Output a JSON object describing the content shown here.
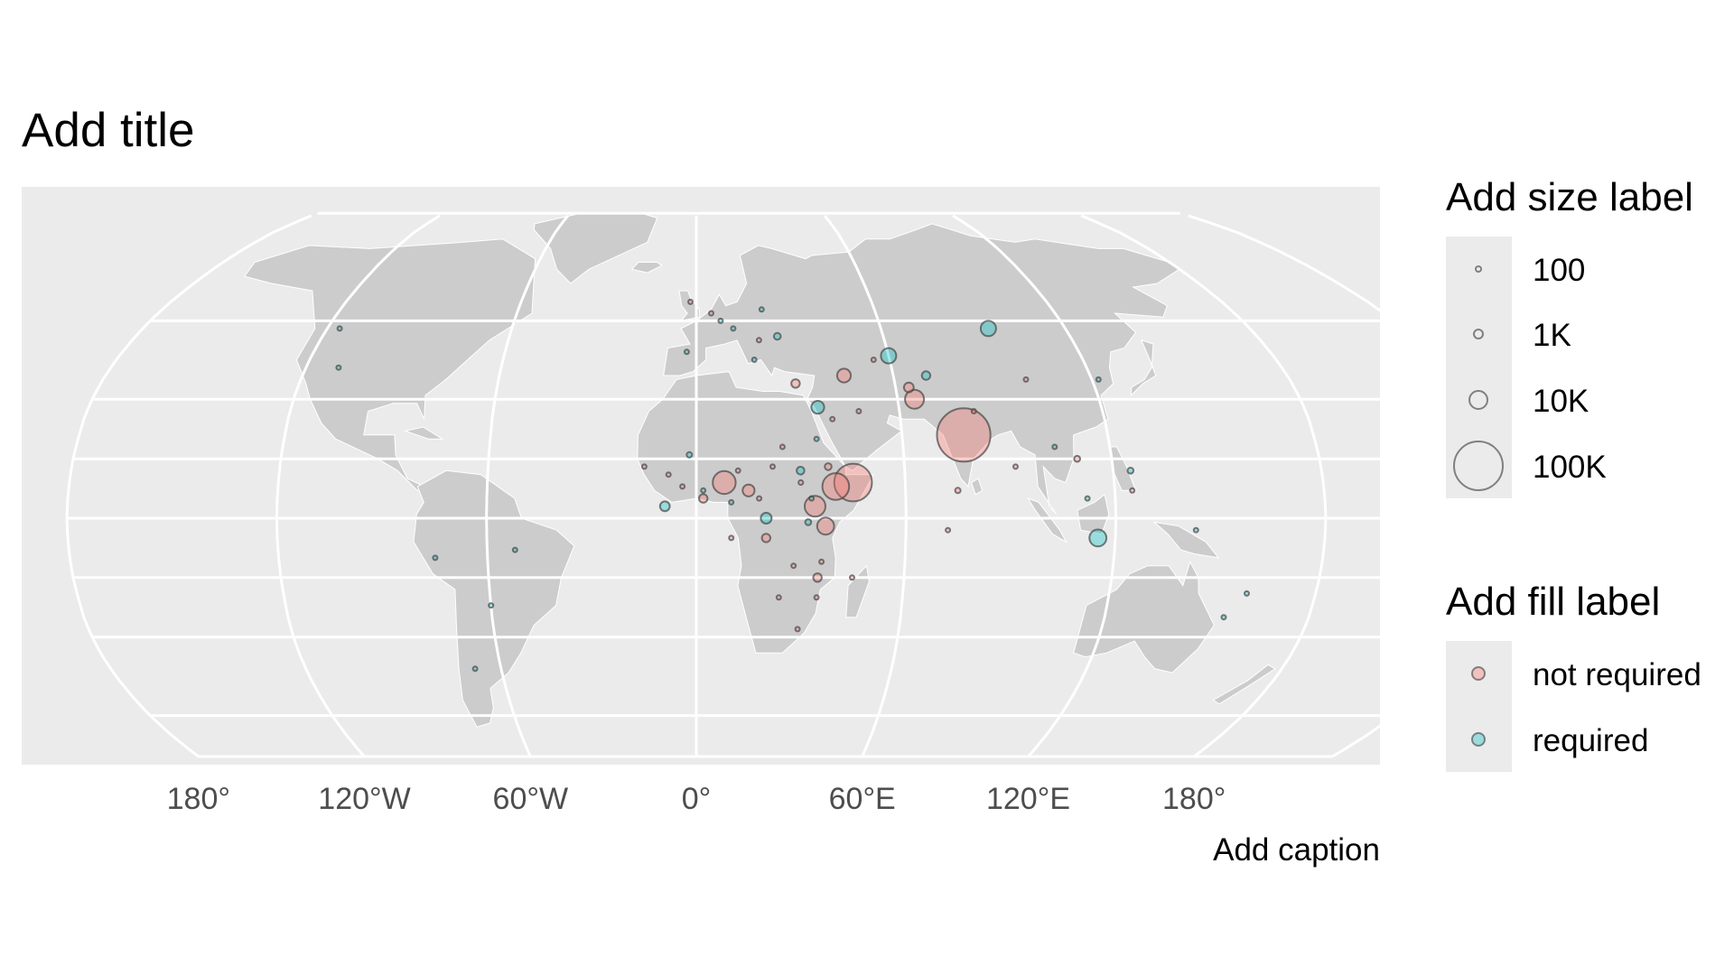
{
  "title": "Add title",
  "caption": "Add caption",
  "x_axis": {
    "tick_labels": [
      "180°",
      "120°W",
      "60°W",
      "0°",
      "60°E",
      "120°E",
      "180°"
    ]
  },
  "legend_size": {
    "title": "Add size label",
    "items": [
      {
        "label": "100",
        "value": 100
      },
      {
        "label": "1K",
        "value": 1000
      },
      {
        "label": "10K",
        "value": 10000
      },
      {
        "label": "100K",
        "value": 100000
      }
    ]
  },
  "legend_fill": {
    "title": "Add fill label",
    "items": [
      {
        "label": "not required",
        "color": "#f8766d"
      },
      {
        "label": "required",
        "color": "#00bfc4"
      }
    ]
  },
  "colors": {
    "panel_background": "#ebebeb",
    "land": "#cccccc",
    "graticule": "#ffffff",
    "not_required": "#f8766d",
    "required": "#00bfc4"
  },
  "chart_data": {
    "type": "scatter",
    "projection": "Robinson",
    "size_variable_scale": "area",
    "points": [
      {
        "lon": 78,
        "lat": 21,
        "size": 120000,
        "group": "not required"
      },
      {
        "lon": 45,
        "lat": 9,
        "size": 60000,
        "group": "not required"
      },
      {
        "lon": 40,
        "lat": 8,
        "size": 30000,
        "group": "not required"
      },
      {
        "lon": 34,
        "lat": 3,
        "size": 18000,
        "group": "not required"
      },
      {
        "lon": 8,
        "lat": 9,
        "size": 22000,
        "group": "not required"
      },
      {
        "lon": 65,
        "lat": 30,
        "size": 15000,
        "group": "not required"
      },
      {
        "lon": 37,
        "lat": -2,
        "size": 12000,
        "group": "not required"
      },
      {
        "lon": 45,
        "lat": 36,
        "size": 8000,
        "group": "not required"
      },
      {
        "lon": 15,
        "lat": 7,
        "size": 6000,
        "group": "not required"
      },
      {
        "lon": 30,
        "lat": 34,
        "size": 3000,
        "group": "not required"
      },
      {
        "lon": 64,
        "lat": 33,
        "size": 4000,
        "group": "not required"
      },
      {
        "lon": 2,
        "lat": 5,
        "size": 3000,
        "group": "not required"
      },
      {
        "lon": 20,
        "lat": -5,
        "size": 3000,
        "group": "not required"
      },
      {
        "lon": 35,
        "lat": -15,
        "size": 3000,
        "group": "not required"
      },
      {
        "lon": 38,
        "lat": 13,
        "size": 2000,
        "group": "not required"
      },
      {
        "lon": 110,
        "lat": 15,
        "size": 1500,
        "group": "not required"
      },
      {
        "lon": 75,
        "lat": 7,
        "size": 1200,
        "group": "not required"
      },
      {
        "lon": 72,
        "lat": -3,
        "size": 600,
        "group": "not required"
      },
      {
        "lon": 40,
        "lat": 25,
        "size": 800,
        "group": "not required"
      },
      {
        "lon": 30,
        "lat": 9,
        "size": 900,
        "group": "not required"
      },
      {
        "lon": 22,
        "lat": 13,
        "size": 800,
        "group": "not required"
      },
      {
        "lon": 12,
        "lat": 12,
        "size": 700,
        "group": "not required"
      },
      {
        "lon": -4,
        "lat": 8,
        "size": 800,
        "group": "not required"
      },
      {
        "lon": -8,
        "lat": 11,
        "size": 700,
        "group": "not required"
      },
      {
        "lon": -15,
        "lat": 13,
        "size": 600,
        "group": "not required"
      },
      {
        "lon": 28,
        "lat": -12,
        "size": 700,
        "group": "not required"
      },
      {
        "lon": 36,
        "lat": -11,
        "size": 700,
        "group": "not required"
      },
      {
        "lon": 30,
        "lat": -28,
        "size": 500,
        "group": "not required"
      },
      {
        "lon": 45,
        "lat": -15,
        "size": 500,
        "group": "not required"
      },
      {
        "lon": 55,
        "lat": 40,
        "size": 400,
        "group": "not required"
      },
      {
        "lon": 100,
        "lat": 35,
        "size": 500,
        "group": "not required"
      },
      {
        "lon": 82,
        "lat": 27,
        "size": 400,
        "group": "not required"
      },
      {
        "lon": 20,
        "lat": 45,
        "size": 300,
        "group": "not required"
      },
      {
        "lon": 5,
        "lat": 52,
        "size": 300,
        "group": "not required"
      },
      {
        "lon": -2,
        "lat": 55,
        "size": 300,
        "group": "not required"
      },
      {
        "lon": 125,
        "lat": 7,
        "size": 300,
        "group": "not required"
      },
      {
        "lon": 10,
        "lat": -5,
        "size": 300,
        "group": "not required"
      },
      {
        "lon": 18,
        "lat": 5,
        "size": 400,
        "group": "not required"
      },
      {
        "lon": 25,
        "lat": 18,
        "size": 300,
        "group": "not required"
      },
      {
        "lon": 48,
        "lat": 27,
        "size": 250,
        "group": "not required"
      },
      {
        "lon": 92,
        "lat": 13,
        "size": 250,
        "group": "not required"
      },
      {
        "lon": 35,
        "lat": -20,
        "size": 300,
        "group": "not required"
      },
      {
        "lon": 24,
        "lat": -20,
        "size": 250,
        "group": "not required"
      },
      {
        "lon": 95,
        "lat": 48,
        "size": 10000,
        "group": "required"
      },
      {
        "lon": 60,
        "lat": 41,
        "size": 10000,
        "group": "required"
      },
      {
        "lon": 115,
        "lat": -5,
        "size": 12000,
        "group": "required"
      },
      {
        "lon": 20,
        "lat": 0,
        "size": 5000,
        "group": "required"
      },
      {
        "lon": 36,
        "lat": 28,
        "size": 7000,
        "group": "required"
      },
      {
        "lon": -9,
        "lat": 3,
        "size": 4000,
        "group": "required"
      },
      {
        "lon": 70,
        "lat": 36,
        "size": 3000,
        "group": "required"
      },
      {
        "lon": 30,
        "lat": 12,
        "size": 2500,
        "group": "required"
      },
      {
        "lon": 125,
        "lat": 12,
        "size": 1500,
        "group": "required"
      },
      {
        "lon": 26,
        "lat": 46,
        "size": 2000,
        "group": "required"
      },
      {
        "lon": -2,
        "lat": 16,
        "size": 1200,
        "group": "required"
      },
      {
        "lon": 32,
        "lat": -1,
        "size": 1500,
        "group": "required"
      },
      {
        "lon": -110,
        "lat": 38,
        "size": 500,
        "group": "required"
      },
      {
        "lon": -52,
        "lat": -8,
        "size": 400,
        "group": "required"
      },
      {
        "lon": 160,
        "lat": -19,
        "size": 300,
        "group": "required"
      },
      {
        "lon": 33,
        "lat": 5,
        "size": 600,
        "group": "required"
      },
      {
        "lon": 2,
        "lat": 7,
        "size": 600,
        "group": "required"
      },
      {
        "lon": 10,
        "lat": 4,
        "size": 500,
        "group": "required"
      },
      {
        "lon": 18,
        "lat": 40,
        "size": 400,
        "group": "required"
      },
      {
        "lon": 12,
        "lat": 48,
        "size": 400,
        "group": "required"
      },
      {
        "lon": 22,
        "lat": 53,
        "size": 400,
        "group": "required"
      },
      {
        "lon": 35,
        "lat": 20,
        "size": 400,
        "group": "required"
      },
      {
        "lon": 122,
        "lat": 35,
        "size": 300,
        "group": "required"
      },
      {
        "lon": 104,
        "lat": 18,
        "size": 300,
        "group": "required"
      },
      {
        "lon": 112,
        "lat": 5,
        "size": 300,
        "group": "required"
      },
      {
        "lon": 8,
        "lat": 50,
        "size": 200,
        "group": "required"
      },
      {
        "lon": -3,
        "lat": 42,
        "size": 200,
        "group": "required"
      },
      {
        "lon": -116,
        "lat": 48,
        "size": 150,
        "group": "required"
      },
      {
        "lon": -75,
        "lat": -10,
        "size": 150,
        "group": "required"
      },
      {
        "lon": -60,
        "lat": -22,
        "size": 150,
        "group": "required"
      },
      {
        "lon": -68,
        "lat": -38,
        "size": 150,
        "group": "required"
      },
      {
        "lon": 155,
        "lat": -25,
        "size": 150,
        "group": "required"
      },
      {
        "lon": 143,
        "lat": -3,
        "size": 150,
        "group": "required"
      }
    ]
  }
}
